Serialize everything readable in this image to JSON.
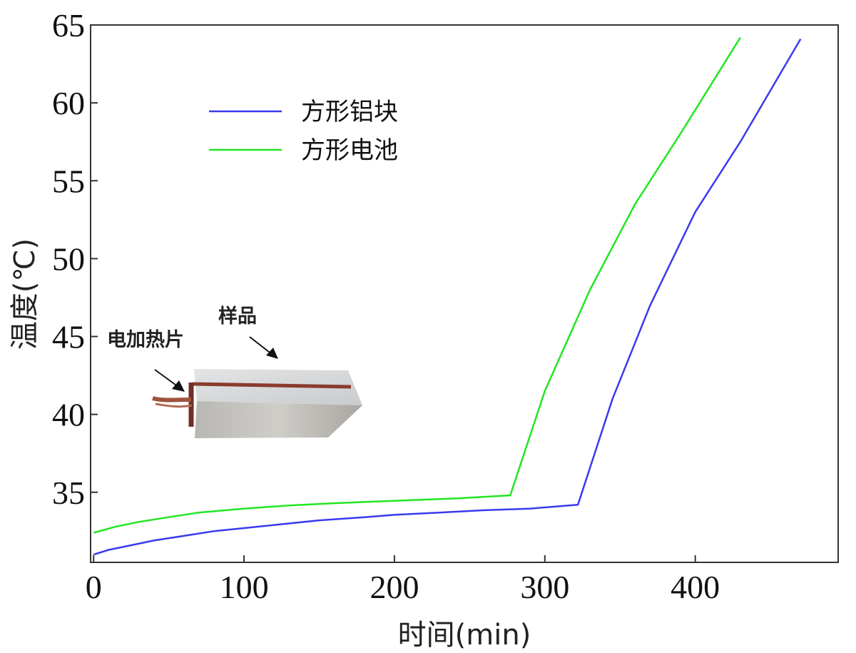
{
  "chart_data": {
    "type": "line",
    "title": "",
    "xlabel": "时间(min)",
    "ylabel": "温度(℃)",
    "xlim": [
      -2,
      495
    ],
    "ylim": [
      30.5,
      65
    ],
    "xticks": [
      0,
      100,
      200,
      300,
      400
    ],
    "yticks": [
      35,
      40,
      45,
      50,
      55,
      60,
      65
    ],
    "grid": false,
    "legend_position": "top-left",
    "series": [
      {
        "name": "方形铝块",
        "color": "#3a3af0",
        "x": [
          0,
          10,
          25,
          40,
          60,
          80,
          100,
          120,
          150,
          180,
          200,
          230,
          260,
          290,
          322,
          345,
          370,
          400,
          430,
          470
        ],
        "y": [
          31.0,
          31.3,
          31.6,
          31.9,
          32.2,
          32.5,
          32.7,
          32.9,
          33.2,
          33.4,
          33.55,
          33.7,
          33.85,
          33.95,
          34.2,
          41.0,
          47.0,
          53.0,
          57.5,
          64.1
        ]
      },
      {
        "name": "方形电池",
        "color": "#22e622",
        "x": [
          0,
          15,
          30,
          50,
          70,
          100,
          130,
          160,
          200,
          240,
          277,
          300,
          330,
          360,
          390,
          430
        ],
        "y": [
          32.4,
          32.8,
          33.1,
          33.4,
          33.7,
          33.95,
          34.15,
          34.3,
          34.45,
          34.6,
          34.8,
          41.5,
          48.0,
          53.5,
          58.0,
          64.2
        ]
      }
    ],
    "annotations": [
      "样品",
      "电加热片"
    ]
  }
}
